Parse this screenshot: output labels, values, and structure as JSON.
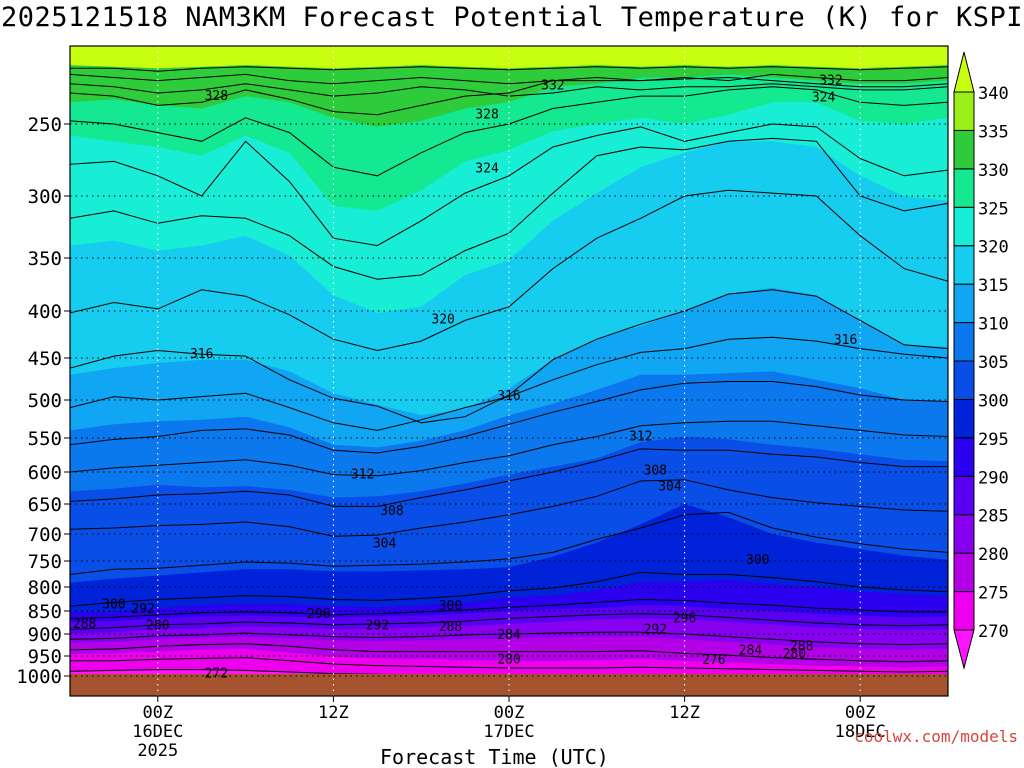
{
  "chart_data": {
    "type": "heatmap",
    "title": "2025121518 NAM3KM Forecast Potential Temperature (K) for KSPI",
    "xlabel": "Forecast Time (UTC)",
    "ylabel": "",
    "y_axis": {
      "reversed": true,
      "ticks": [
        250,
        300,
        350,
        400,
        450,
        500,
        550,
        600,
        650,
        700,
        750,
        800,
        850,
        900,
        950,
        1000
      ],
      "ylim": [
        1000,
        200
      ]
    },
    "x_axis": {
      "ticks": [
        {
          "hour": 6,
          "label": "00Z",
          "sub1": "16DEC",
          "sub2": "2025"
        },
        {
          "hour": 18,
          "label": "12Z",
          "sub1": "",
          "sub2": ""
        },
        {
          "hour": 30,
          "label": "00Z",
          "sub1": "17DEC",
          "sub2": ""
        },
        {
          "hour": 42,
          "label": "12Z",
          "sub1": "",
          "sub2": ""
        },
        {
          "hour": 54,
          "label": "00Z",
          "sub1": "18DEC",
          "sub2": ""
        }
      ],
      "xlim": [
        0,
        60
      ]
    },
    "colorbar": {
      "levels": [
        270,
        275,
        280,
        285,
        290,
        295,
        300,
        305,
        310,
        315,
        320,
        325,
        330,
        335,
        340
      ],
      "colors": [
        "#ff14ff",
        "#ee00ee",
        "#b300e6",
        "#8800f0",
        "#5a00f2",
        "#2a00ee",
        "#0022d8",
        "#0a4ee8",
        "#0c78ee",
        "#10a6f4",
        "#16cdf0",
        "#18edd6",
        "#14e890",
        "#2ecc3a",
        "#9cef18",
        "#c8ff10"
      ]
    },
    "contour_labels": [
      {
        "value": "332",
        "x": 33,
        "p": 225
      },
      {
        "value": "332",
        "x": 52,
        "p": 222
      },
      {
        "value": "328",
        "x": 10,
        "p": 232
      },
      {
        "value": "328",
        "x": 28.5,
        "p": 244
      },
      {
        "value": "324",
        "x": 51.5,
        "p": 233
      },
      {
        "value": "324",
        "x": 28.5,
        "p": 281
      },
      {
        "value": "320",
        "x": 25.5,
        "p": 409
      },
      {
        "value": "316",
        "x": 9,
        "p": 446
      },
      {
        "value": "316",
        "x": 30,
        "p": 495
      },
      {
        "value": "316",
        "x": 53,
        "p": 431
      },
      {
        "value": "312",
        "x": 39,
        "p": 548
      },
      {
        "value": "312",
        "x": 20,
        "p": 604
      },
      {
        "value": "308",
        "x": 40,
        "p": 598
      },
      {
        "value": "308",
        "x": 22,
        "p": 662
      },
      {
        "value": "304",
        "x": 41,
        "p": 623
      },
      {
        "value": "304",
        "x": 21.5,
        "p": 718
      },
      {
        "value": "300",
        "x": 47,
        "p": 748
      },
      {
        "value": "300",
        "x": 3,
        "p": 836
      },
      {
        "value": "300",
        "x": 26,
        "p": 840
      },
      {
        "value": "292",
        "x": 5,
        "p": 846
      },
      {
        "value": "296",
        "x": 17,
        "p": 857
      },
      {
        "value": "296",
        "x": 42,
        "p": 866
      },
      {
        "value": "288",
        "x": 1,
        "p": 878
      },
      {
        "value": "280",
        "x": 6,
        "p": 882
      },
      {
        "value": "292",
        "x": 21,
        "p": 882
      },
      {
        "value": "288",
        "x": 26,
        "p": 885
      },
      {
        "value": "292",
        "x": 40,
        "p": 890
      },
      {
        "value": "284",
        "x": 30,
        "p": 902
      },
      {
        "value": "288",
        "x": 50,
        "p": 928
      },
      {
        "value": "284",
        "x": 46.5,
        "p": 938
      },
      {
        "value": "280",
        "x": 49.5,
        "p": 945
      },
      {
        "value": "280",
        "x": 30,
        "p": 959
      },
      {
        "value": "276",
        "x": 44,
        "p": 960
      },
      {
        "value": "272",
        "x": 10,
        "p": 994
      }
    ]
  },
  "credit": "coolwx.com/models"
}
